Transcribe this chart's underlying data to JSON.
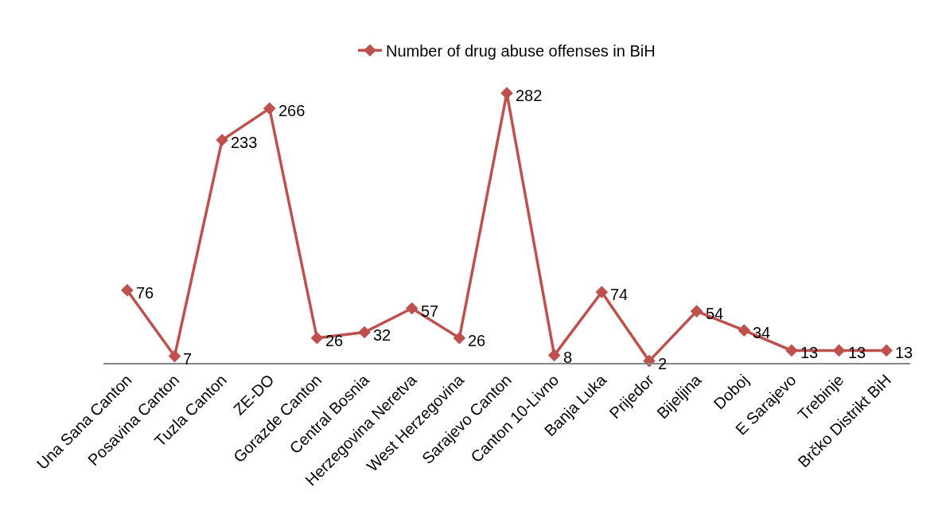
{
  "chart_data": {
    "type": "line",
    "categories": [
      "Una Sana Canton",
      "Posavina Canton",
      "Tuzla Canton",
      "ZE-DO",
      "Gorazde Canton",
      "Central Bosnia",
      "Herzegovina Neretva",
      "West Herzegovina",
      "Sarajevo Canton",
      "Canton 10-Livno",
      "Banja Luka",
      "Prijedor",
      "Bijeljina",
      "Doboj",
      "E Sarajevo",
      "Trebinje",
      "Brčko Distrikt BiH"
    ],
    "series": [
      {
        "name": "Number of drug abuse offenses in BiH",
        "color": "#c0504d",
        "values": [
          76,
          7,
          233,
          266,
          26,
          32,
          57,
          26,
          282,
          8,
          74,
          2,
          54,
          34,
          13,
          13,
          13
        ]
      }
    ],
    "marker": "diamond",
    "data_labels": true,
    "legend": "top"
  }
}
